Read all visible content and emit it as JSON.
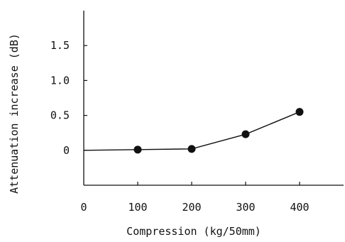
{
  "chart_data": {
    "type": "line",
    "title": "",
    "xlabel": "Compression (kg/50mm)",
    "ylabel": "Attenuation increase (dB)",
    "x_tick_labels": [
      "0",
      "100",
      "200",
      "300",
      "400"
    ],
    "x_ticks": [
      0,
      100,
      200,
      300,
      400
    ],
    "y_tick_labels": [
      "0",
      "0.5",
      "1.0",
      "1.5"
    ],
    "y_ticks": [
      0,
      0.5,
      1.0,
      1.5
    ],
    "xlim": [
      0,
      500
    ],
    "ylim": [
      -0.5,
      2.0
    ],
    "grid": false,
    "colors": {
      "line": "#111111",
      "marker": "#111111",
      "axis": "#111111"
    },
    "series": [
      {
        "x": [
          0,
          100,
          200,
          300,
          400
        ],
        "y": [
          0.0,
          0.01,
          0.02,
          0.23,
          0.55
        ],
        "marked_x": [
          100,
          200,
          300,
          400
        ]
      }
    ]
  }
}
